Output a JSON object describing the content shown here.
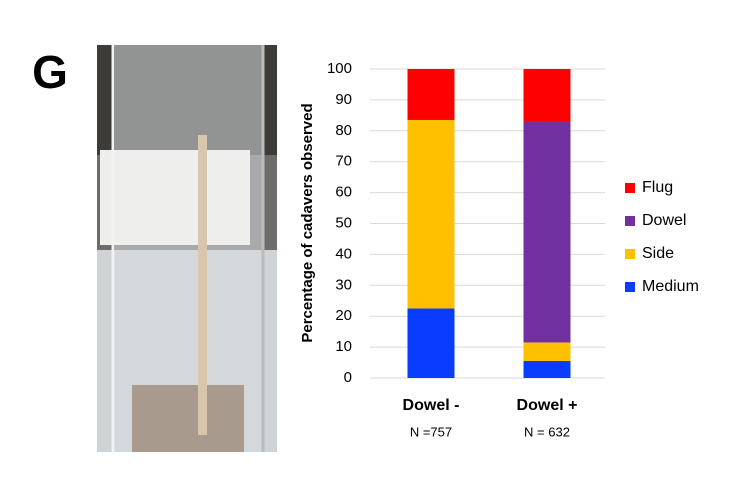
{
  "panel_label": "G",
  "chart_data": {
    "type": "stacked_bar",
    "y_label": "Percentage of cadavers observed",
    "categories": [
      "Dowel -",
      "Dowel +"
    ],
    "sample_sizes": [
      "N =757",
      "N = 632"
    ],
    "series": [
      {
        "name": "Medium",
        "color": "#0a3cff",
        "values": [
          22.5,
          5.5
        ]
      },
      {
        "name": "Side",
        "color": "#ffc000",
        "values": [
          61,
          6
        ]
      },
      {
        "name": "Dowel",
        "color": "#7030a0",
        "values": [
          0,
          71.5
        ]
      },
      {
        "name": "Flug",
        "color": "#ff0000",
        "values": [
          16.5,
          17
        ]
      }
    ],
    "ylim": [
      0,
      100
    ],
    "yticks": [
      0,
      10,
      20,
      30,
      40,
      50,
      60,
      70,
      80,
      90,
      100
    ],
    "grid": true,
    "legend": "right"
  }
}
